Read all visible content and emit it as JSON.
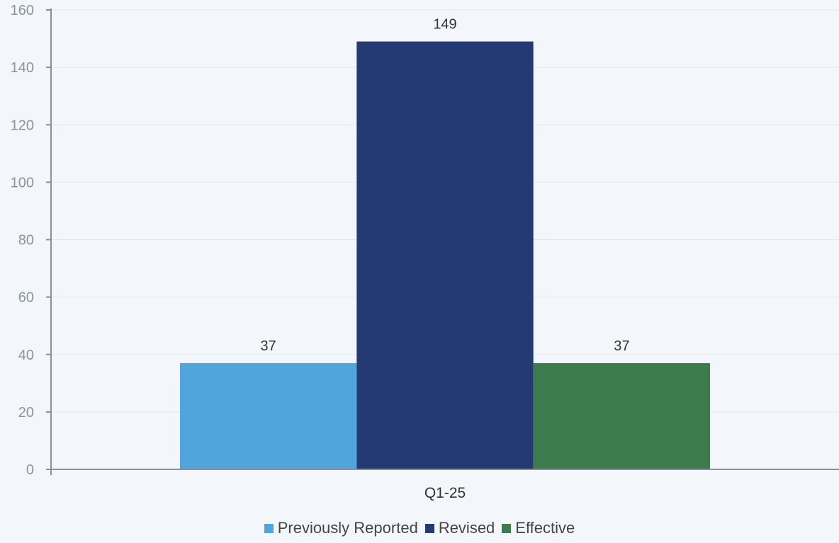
{
  "chart_data": {
    "type": "bar",
    "categories": [
      "Q1-25"
    ],
    "series": [
      {
        "name": "Previously Reported",
        "values": [
          37
        ],
        "color": "#4fa5dc"
      },
      {
        "name": "Revised",
        "values": [
          149
        ],
        "color": "#233a72"
      },
      {
        "name": "Effective",
        "values": [
          37
        ],
        "color": "#3d7b4d"
      }
    ],
    "ylim": [
      0,
      160
    ],
    "yticks": [
      0,
      20,
      40,
      60,
      80,
      100,
      120,
      140,
      160
    ],
    "data_labels": [
      "37",
      "149",
      "37"
    ],
    "grid": true,
    "legend_position": "bottom"
  }
}
